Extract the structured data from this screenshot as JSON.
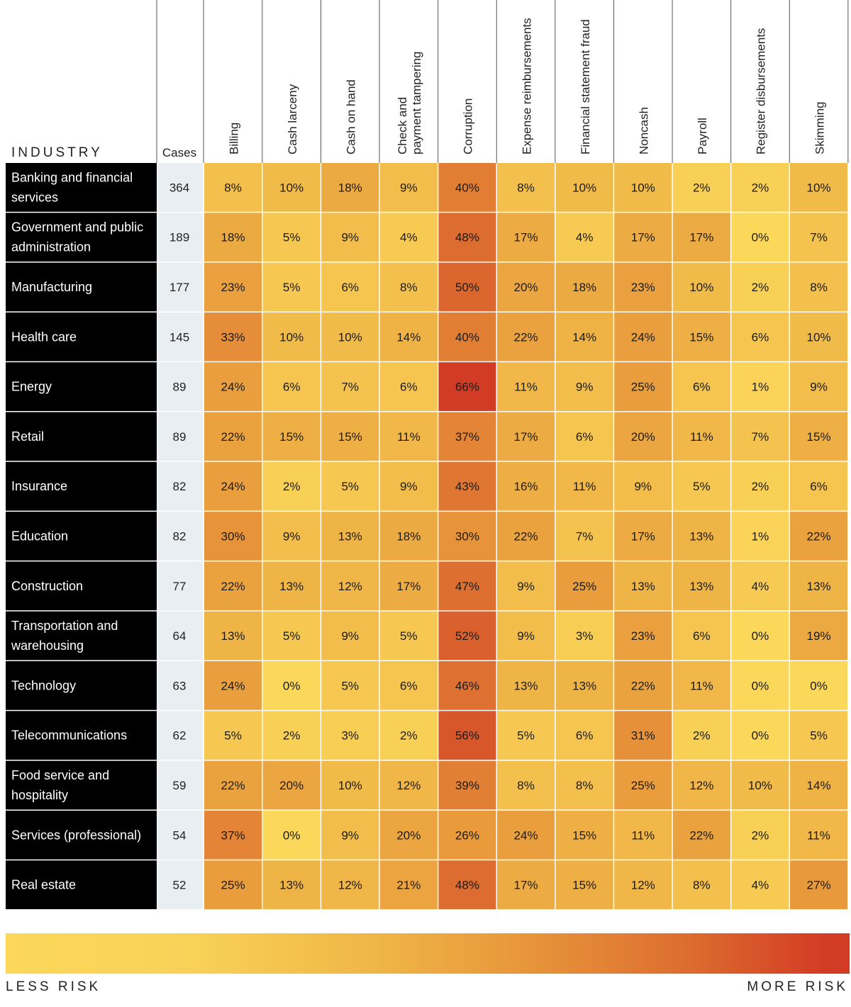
{
  "chart_data": {
    "type": "heatmap",
    "row_header": "INDUSTRY",
    "cases_header": "Cases",
    "columns": [
      "Billing",
      "Cash larceny",
      "Cash on hand",
      "Check and payment tampering",
      "Corruption",
      "Expense reimbursements",
      "Financial statement fraud",
      "Noncash",
      "Payroll",
      "Register disbursements",
      "Skimming"
    ],
    "rows": [
      {
        "industry": "Banking and financial services",
        "cases": 364,
        "values": [
          "8%",
          "10%",
          "18%",
          "9%",
          "40%",
          "8%",
          "10%",
          "10%",
          "2%",
          "2%",
          "10%"
        ]
      },
      {
        "industry": "Government and public administration",
        "cases": 189,
        "values": [
          "18%",
          "5%",
          "9%",
          "4%",
          "48%",
          "17%",
          "4%",
          "17%",
          "17%",
          "0%",
          "7%"
        ]
      },
      {
        "industry": "Manufacturing",
        "cases": 177,
        "values": [
          "23%",
          "5%",
          "6%",
          "8%",
          "50%",
          "20%",
          "18%",
          "23%",
          "10%",
          "2%",
          "8%"
        ]
      },
      {
        "industry": "Health care",
        "cases": 145,
        "values": [
          "33%",
          "10%",
          "10%",
          "14%",
          "40%",
          "22%",
          "14%",
          "24%",
          "15%",
          "6%",
          "10%"
        ]
      },
      {
        "industry": "Energy",
        "cases": 89,
        "values": [
          "24%",
          "6%",
          "7%",
          "6%",
          "66%",
          "11%",
          "9%",
          "25%",
          "6%",
          "1%",
          "9%"
        ]
      },
      {
        "industry": "Retail",
        "cases": 89,
        "values": [
          "22%",
          "15%",
          "15%",
          "11%",
          "37%",
          "17%",
          "6%",
          "20%",
          "11%",
          "7%",
          "15%"
        ]
      },
      {
        "industry": "Insurance",
        "cases": 82,
        "values": [
          "24%",
          "2%",
          "5%",
          "9%",
          "43%",
          "16%",
          "11%",
          "9%",
          "5%",
          "2%",
          "6%"
        ]
      },
      {
        "industry": "Education",
        "cases": 82,
        "values": [
          "30%",
          "9%",
          "13%",
          "18%",
          "30%",
          "22%",
          "7%",
          "17%",
          "13%",
          "1%",
          "22%"
        ]
      },
      {
        "industry": "Construction",
        "cases": 77,
        "values": [
          "22%",
          "13%",
          "12%",
          "17%",
          "47%",
          "9%",
          "25%",
          "13%",
          "13%",
          "4%",
          "13%"
        ]
      },
      {
        "industry": "Transportation and warehousing",
        "cases": 64,
        "values": [
          "13%",
          "5%",
          "9%",
          "5%",
          "52%",
          "9%",
          "3%",
          "23%",
          "6%",
          "0%",
          "19%"
        ]
      },
      {
        "industry": "Technology",
        "cases": 63,
        "values": [
          "24%",
          "0%",
          "5%",
          "6%",
          "46%",
          "13%",
          "13%",
          "22%",
          "11%",
          "0%",
          "0%"
        ]
      },
      {
        "industry": "Telecommunications",
        "cases": 62,
        "values": [
          "5%",
          "2%",
          "3%",
          "2%",
          "56%",
          "5%",
          "6%",
          "31%",
          "2%",
          "0%",
          "5%"
        ]
      },
      {
        "industry": "Food service and hospitality",
        "cases": 59,
        "values": [
          "22%",
          "20%",
          "10%",
          "12%",
          "39%",
          "8%",
          "8%",
          "25%",
          "12%",
          "10%",
          "14%"
        ]
      },
      {
        "industry": "Services (professional)",
        "cases": 54,
        "values": [
          "37%",
          "0%",
          "9%",
          "20%",
          "26%",
          "24%",
          "15%",
          "11%",
          "22%",
          "2%",
          "11%"
        ]
      },
      {
        "industry": "Real estate",
        "cases": 52,
        "values": [
          "25%",
          "13%",
          "12%",
          "21%",
          "48%",
          "17%",
          "15%",
          "12%",
          "8%",
          "4%",
          "27%"
        ]
      }
    ],
    "legend": {
      "low_label": "LESS RISK",
      "high_label": "MORE RISK"
    }
  },
  "colors": {
    "scale": [
      "#fbd75a",
      "#efb446",
      "#e7953a",
      "#dd6f30",
      "#d23c24"
    ],
    "industry_cell_bg": "#000000",
    "industry_text": "#ffffff",
    "cases_cell_bg": "#e8eef2"
  }
}
